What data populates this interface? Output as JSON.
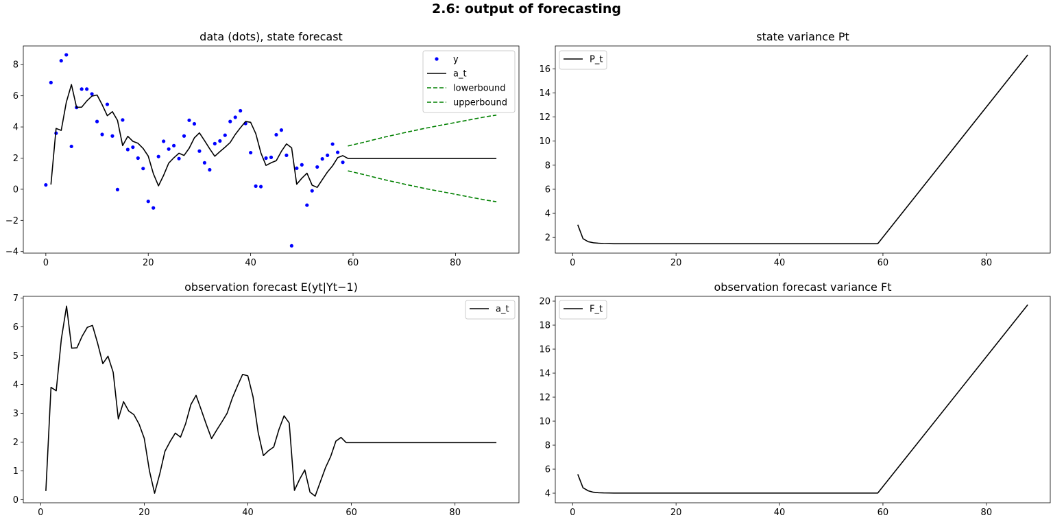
{
  "figure": {
    "suptitle": "2.6: output of forecasting"
  },
  "chart_data": [
    {
      "type": "line",
      "title": "data (dots), state forecast",
      "xlim": [
        -4.4,
        92.4
      ],
      "ylim": [
        -4.1,
        9.2
      ],
      "xticks": [
        0,
        20,
        40,
        60,
        80
      ],
      "yticks": [
        -4,
        -2,
        0,
        2,
        4,
        6,
        8
      ],
      "legend": "top-right",
      "series": [
        {
          "name": "y",
          "kind": "scatter",
          "color": "#0000ff",
          "x": [
            0,
            1,
            2,
            3,
            4,
            5,
            6,
            7,
            8,
            9,
            10,
            11,
            12,
            13,
            14,
            15,
            16,
            17,
            18,
            19,
            20,
            21,
            22,
            23,
            24,
            25,
            26,
            27,
            28,
            29,
            30,
            31,
            32,
            33,
            34,
            35,
            36,
            37,
            38,
            39,
            40,
            41,
            42,
            43,
            44,
            45,
            46,
            47,
            48,
            49,
            50,
            51,
            52,
            53,
            54,
            55,
            56,
            57,
            58
          ],
          "y": [
            0.28,
            6.85,
            3.6,
            8.25,
            8.63,
            2.75,
            5.25,
            6.43,
            6.43,
            6.12,
            4.35,
            3.52,
            5.45,
            3.42,
            -0.02,
            4.45,
            2.55,
            2.7,
            2.0,
            1.33,
            -0.78,
            -1.2,
            2.1,
            3.08,
            2.58,
            2.8,
            1.97,
            3.42,
            4.43,
            4.2,
            2.45,
            1.7,
            1.25,
            2.93,
            3.1,
            3.47,
            4.35,
            4.62,
            5.04,
            4.22,
            2.35,
            0.2,
            0.17,
            2.0,
            2.05,
            3.5,
            3.8,
            2.18,
            -3.63,
            1.35,
            1.57,
            -1.02,
            -0.1,
            1.43,
            1.95,
            2.18,
            2.9,
            2.37,
            1.73
          ]
        },
        {
          "name": "a_t",
          "kind": "line",
          "color": "#000000",
          "x": [
            1,
            2,
            3,
            4,
            5,
            6,
            7,
            8,
            9,
            10,
            11,
            12,
            13,
            14,
            15,
            16,
            17,
            18,
            19,
            20,
            21,
            22,
            23,
            24,
            25,
            26,
            27,
            28,
            29,
            30,
            31,
            32,
            33,
            34,
            35,
            36,
            37,
            38,
            39,
            40,
            41,
            42,
            43,
            44,
            45,
            46,
            47,
            48,
            49,
            50,
            51,
            52,
            53,
            54,
            55,
            56,
            57,
            58,
            59,
            60,
            88
          ],
          "y": [
            0.3,
            3.9,
            3.78,
            5.58,
            6.72,
            5.26,
            5.27,
            5.67,
            5.98,
            6.05,
            5.43,
            4.72,
            4.98,
            4.42,
            2.8,
            3.4,
            3.08,
            2.95,
            2.62,
            2.13,
            1.0,
            0.22,
            0.9,
            1.68,
            2.02,
            2.31,
            2.17,
            2.64,
            3.3,
            3.62,
            3.12,
            2.6,
            2.12,
            2.42,
            2.7,
            3.0,
            3.52,
            3.95,
            4.35,
            4.3,
            3.57,
            2.33,
            1.53,
            1.7,
            1.83,
            2.43,
            2.91,
            2.66,
            0.32,
            0.71,
            1.03,
            0.26,
            0.12,
            0.62,
            1.11,
            1.5,
            2.03,
            2.16,
            1.98,
            1.98,
            1.98
          ]
        },
        {
          "name": "lowerbound",
          "kind": "dashed",
          "color": "#008000",
          "x": [
            59,
            62,
            66,
            70,
            74,
            78,
            82,
            86,
            88
          ],
          "y": [
            1.18,
            0.95,
            0.62,
            0.33,
            0.05,
            -0.2,
            -0.45,
            -0.7,
            -0.8
          ]
        },
        {
          "name": "upperbound",
          "kind": "dashed",
          "color": "#008000",
          "x": [
            59,
            62,
            66,
            70,
            74,
            78,
            82,
            86,
            88
          ],
          "y": [
            2.78,
            3.01,
            3.34,
            3.63,
            3.91,
            4.16,
            4.41,
            4.66,
            4.76
          ]
        }
      ]
    },
    {
      "type": "line",
      "title": "state variance Pt",
      "xlim": [
        -3.35,
        92.35
      ],
      "ylim": [
        0.7,
        17.9
      ],
      "xticks": [
        0,
        20,
        40,
        60,
        80
      ],
      "yticks": [
        2,
        4,
        6,
        8,
        10,
        12,
        14,
        16
      ],
      "legend": "top-left",
      "series": [
        {
          "name": "P_t",
          "kind": "line",
          "color": "#000000",
          "x": [
            1,
            2,
            3,
            4,
            5,
            6,
            8,
            59,
            88
          ],
          "y": [
            3.05,
            1.9,
            1.65,
            1.56,
            1.52,
            1.5,
            1.48,
            1.48,
            17.16
          ]
        }
      ]
    },
    {
      "type": "line",
      "title": "observation forecast E(yt|Yt−1)",
      "xlim": [
        -3.35,
        92.35
      ],
      "ylim": [
        -0.11,
        7.06
      ],
      "xticks": [
        0,
        20,
        40,
        60,
        80
      ],
      "yticks": [
        0,
        1,
        2,
        3,
        4,
        5,
        6,
        7
      ],
      "legend": "top-right",
      "series": [
        {
          "name": "a_t",
          "kind": "line",
          "color": "#000000",
          "x": [
            1,
            2,
            3,
            4,
            5,
            6,
            7,
            8,
            9,
            10,
            11,
            12,
            13,
            14,
            15,
            16,
            17,
            18,
            19,
            20,
            21,
            22,
            23,
            24,
            25,
            26,
            27,
            28,
            29,
            30,
            31,
            32,
            33,
            34,
            35,
            36,
            37,
            38,
            39,
            40,
            41,
            42,
            43,
            44,
            45,
            46,
            47,
            48,
            49,
            50,
            51,
            52,
            53,
            54,
            55,
            56,
            57,
            58,
            59,
            60,
            88
          ],
          "y": [
            0.3,
            3.9,
            3.78,
            5.58,
            6.72,
            5.26,
            5.27,
            5.67,
            5.98,
            6.05,
            5.43,
            4.72,
            4.98,
            4.42,
            2.8,
            3.4,
            3.08,
            2.95,
            2.62,
            2.13,
            1.0,
            0.22,
            0.9,
            1.68,
            2.02,
            2.31,
            2.17,
            2.64,
            3.3,
            3.62,
            3.12,
            2.6,
            2.12,
            2.42,
            2.7,
            3.0,
            3.52,
            3.95,
            4.35,
            4.3,
            3.57,
            2.33,
            1.53,
            1.7,
            1.83,
            2.43,
            2.91,
            2.66,
            0.32,
            0.71,
            1.03,
            0.26,
            0.12,
            0.62,
            1.11,
            1.5,
            2.03,
            2.16,
            1.98,
            1.98,
            1.98
          ]
        }
      ]
    },
    {
      "type": "line",
      "title": "observation forecast variance Ft",
      "xlim": [
        -3.35,
        92.35
      ],
      "ylim": [
        3.2,
        20.4
      ],
      "xticks": [
        0,
        20,
        40,
        60,
        80
      ],
      "yticks": [
        4,
        6,
        8,
        10,
        12,
        14,
        16,
        18,
        20
      ],
      "legend": "top-left",
      "series": [
        {
          "name": "F_t",
          "kind": "line",
          "color": "#000000",
          "x": [
            1,
            2,
            3,
            4,
            5,
            6,
            8,
            59,
            88
          ],
          "y": [
            5.58,
            4.45,
            4.2,
            4.08,
            4.04,
            4.02,
            4.01,
            4.01,
            19.7
          ]
        }
      ]
    }
  ]
}
